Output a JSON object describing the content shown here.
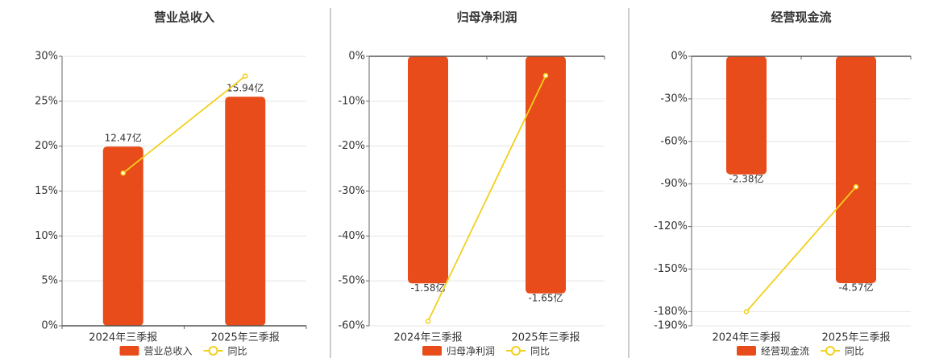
{
  "chart_data": [
    {
      "type": "bar",
      "title": "营业总收入",
      "categories": [
        "2024年三季报",
        "2025年三季报"
      ],
      "series": [
        {
          "name": "营业总收入",
          "color": "#e84c1a",
          "values": [
            12.47,
            15.94
          ],
          "value_labels": [
            "12.47亿",
            "15.94亿"
          ],
          "axis": "y2"
        },
        {
          "name": "同比",
          "type": "line",
          "color": "#f2d01c",
          "values": [
            17,
            27.8
          ]
        }
      ],
      "ylim": [
        0,
        30
      ],
      "y2lim": [
        0,
        18.75
      ],
      "yticks": [
        {
          "value": 0,
          "label": "0%"
        },
        {
          "value": 5,
          "label": "5%"
        },
        {
          "value": 10,
          "label": "10%"
        },
        {
          "value": 15,
          "label": "15%"
        },
        {
          "value": 20,
          "label": "20%"
        },
        {
          "value": 25,
          "label": "25%"
        },
        {
          "value": 30,
          "label": "30%"
        }
      ],
      "grid": true
    },
    {
      "type": "bar",
      "title": "归母净利润",
      "categories": [
        "2024年三季报",
        "2025年三季报"
      ],
      "series": [
        {
          "name": "归母净利润",
          "color": "#e84c1a",
          "values": [
            -1.58,
            -1.65
          ],
          "value_labels": [
            "-1.58亿",
            "-1.65亿"
          ],
          "axis": "y2"
        },
        {
          "name": "同比",
          "type": "line",
          "color": "#f2d01c",
          "values": [
            -59,
            -4.3
          ]
        }
      ],
      "ylim": [
        -60,
        0
      ],
      "y2lim": [
        -1.875,
        0
      ],
      "yticks": [
        {
          "value": 0,
          "label": "0%"
        },
        {
          "value": -10,
          "label": "-10%"
        },
        {
          "value": -20,
          "label": "-20%"
        },
        {
          "value": -30,
          "label": "-30%"
        },
        {
          "value": -40,
          "label": "-40%"
        },
        {
          "value": -50,
          "label": "-50%"
        },
        {
          "value": -60,
          "label": "-60%"
        }
      ],
      "grid": true
    },
    {
      "type": "bar",
      "title": "经营现金流",
      "categories": [
        "2024年三季报",
        "2025年三季报"
      ],
      "series": [
        {
          "name": "经营现金流",
          "color": "#e84c1a",
          "values": [
            -2.38,
            -4.57
          ],
          "value_labels": [
            "-2.38亿",
            "-4.57亿"
          ],
          "axis": "y2"
        },
        {
          "name": "同比",
          "type": "line",
          "color": "#f2d01c",
          "values": [
            -180,
            -92
          ]
        }
      ],
      "ylim": [
        -190,
        0
      ],
      "y2lim": [
        -5.43,
        0
      ],
      "yticks": [
        {
          "value": 0,
          "label": "0%"
        },
        {
          "value": -30,
          "label": "-30%"
        },
        {
          "value": -60,
          "label": "-60%"
        },
        {
          "value": -90,
          "label": "-90%"
        },
        {
          "value": -120,
          "label": "-120%"
        },
        {
          "value": -150,
          "label": "-150%"
        },
        {
          "value": -180,
          "label": "-180%"
        },
        {
          "value": -190,
          "label": "-190%"
        }
      ],
      "grid": true
    }
  ]
}
